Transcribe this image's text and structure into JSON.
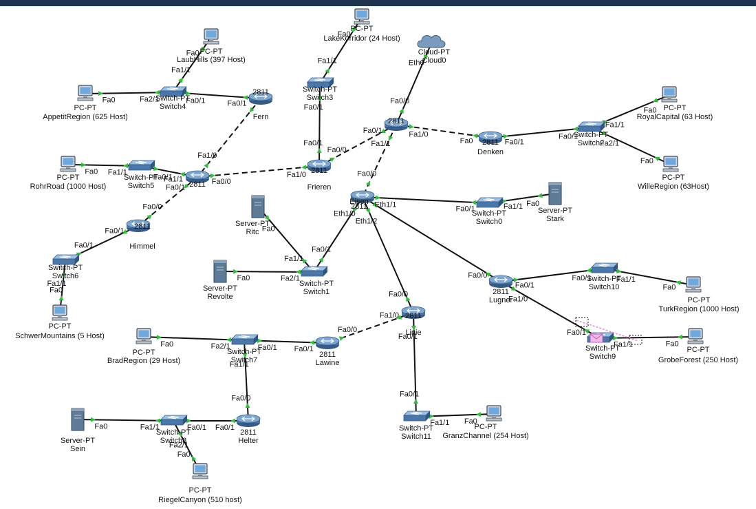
{
  "colors": {
    "top_bar": "#1f3350",
    "link": "#111111",
    "port_ok": "#2fbf3a",
    "pdu": "#e58ad6"
  },
  "devices": [
    {
      "id": "laubhills",
      "type": "pc",
      "name": "PC-PT",
      "label": "LaubHills (397 Host)"
    },
    {
      "id": "appetit",
      "type": "pc",
      "name": "PC-PT",
      "label": "AppetitRegion (625 Host)"
    },
    {
      "id": "switch4",
      "type": "switch",
      "name": "Switch-PT",
      "label": "Switch4"
    },
    {
      "id": "fern",
      "type": "router",
      "name": "2811",
      "label": "Fern"
    },
    {
      "id": "lakekorridor",
      "type": "pc",
      "name": "PC-PT",
      "label": "LakeKorridor (24 Host)"
    },
    {
      "id": "switch3",
      "type": "switch",
      "name": "Switch-PT",
      "label": "Switch3"
    },
    {
      "id": "cloud0",
      "type": "cloud",
      "name": "Cloud-PT",
      "label": "Cloud0"
    },
    {
      "id": "r1",
      "type": "router",
      "name": "2811",
      "label": ""
    },
    {
      "id": "denken",
      "type": "router",
      "name": "2811",
      "label": "Denken"
    },
    {
      "id": "switch2",
      "type": "switch",
      "name": "Switch-PT",
      "label": "Switch2"
    },
    {
      "id": "royalcapital",
      "type": "pc",
      "name": "PC-PT",
      "label": "RoyalCapital (63 Host)"
    },
    {
      "id": "willeregion",
      "type": "pc",
      "name": "PC-PT",
      "label": "WilleRegion (63Host)"
    },
    {
      "id": "rohrroad",
      "type": "pc",
      "name": "PC-PT",
      "label": "RohrRoad (1000 Host)"
    },
    {
      "id": "switch5",
      "type": "switch",
      "name": "Switch-PT",
      "label": "Switch5"
    },
    {
      "id": "r2",
      "type": "router",
      "name": "2811",
      "label": ""
    },
    {
      "id": "frieren",
      "type": "router",
      "name": "2811",
      "label": "Frieren"
    },
    {
      "id": "eisen",
      "type": "router",
      "name": "2811",
      "label": "Eisen"
    },
    {
      "id": "switch0",
      "type": "switch",
      "name": "Switch-PT",
      "label": "Switch0"
    },
    {
      "id": "stark",
      "type": "server",
      "name": "Server-PT",
      "label": "Stark"
    },
    {
      "id": "ritc",
      "type": "server",
      "name": "Server-PT",
      "label": "Ritc"
    },
    {
      "id": "himmel",
      "type": "router",
      "name": "2811",
      "label": "Himmel"
    },
    {
      "id": "switch6",
      "type": "switch",
      "name": "Switch-PT",
      "label": "Switch6"
    },
    {
      "id": "schwer",
      "type": "pc",
      "name": "PC-PT",
      "label": "SchwerMountains (5 Host)"
    },
    {
      "id": "revolte",
      "type": "server",
      "name": "Server-PT",
      "label": "Revolte"
    },
    {
      "id": "switch1",
      "type": "switch",
      "name": "Switch-PT",
      "label": "Switch1"
    },
    {
      "id": "lugner",
      "type": "router",
      "name": "2811",
      "label": "Lugner"
    },
    {
      "id": "switch10",
      "type": "switch",
      "name": "Switch-PT",
      "label": "Switch10"
    },
    {
      "id": "turkregion",
      "type": "pc",
      "name": "PC-PT",
      "label": "TurkRegion (1000 Host)"
    },
    {
      "id": "switch9",
      "type": "switch",
      "name": "Switch-PT",
      "label": "Switch9"
    },
    {
      "id": "grobeforest",
      "type": "pc",
      "name": "PC-PT",
      "label": "GrobeForest (250 Host)"
    },
    {
      "id": "linie",
      "type": "router",
      "name": "2811",
      "label": "Linie"
    },
    {
      "id": "bradregion",
      "type": "pc",
      "name": "PC-PT",
      "label": "BradRegion (29 Host)"
    },
    {
      "id": "switch7",
      "type": "switch",
      "name": "Switch-PT",
      "label": "Switch7"
    },
    {
      "id": "lawine",
      "type": "router",
      "name": "2811",
      "label": "Lawine"
    },
    {
      "id": "switch11",
      "type": "switch",
      "name": "Switch-PT",
      "label": "Switch11"
    },
    {
      "id": "granzchannel",
      "type": "pc",
      "name": "PC-PT",
      "label": "GranzChannel (254 Host)"
    },
    {
      "id": "sein",
      "type": "server",
      "name": "Server-PT",
      "label": "Sein"
    },
    {
      "id": "switch8",
      "type": "switch",
      "name": "Switch-PT",
      "label": "Switch8"
    },
    {
      "id": "helter",
      "type": "router",
      "name": "2811",
      "label": "Helter"
    },
    {
      "id": "riegel",
      "type": "pc",
      "name": "PC-PT",
      "label": "RiegelCanyon (510 host)"
    }
  ],
  "links": [
    {
      "from": "laubhills",
      "to": "switch4",
      "style": "solid",
      "a": "Fa0",
      "b": "Fa1/1"
    },
    {
      "from": "appetit",
      "to": "switch4",
      "style": "solid",
      "a": "Fa0",
      "b": "Fa2/1"
    },
    {
      "from": "switch4",
      "to": "fern",
      "style": "solid",
      "a": "Fa0/1",
      "b": "Fa0/1"
    },
    {
      "from": "fern",
      "to": "r2",
      "style": "dashed",
      "a": "",
      "b": "Fa1/0"
    },
    {
      "from": "lakekorridor",
      "to": "switch3",
      "style": "solid",
      "a": "Fa0",
      "b": "Fa1/1"
    },
    {
      "from": "switch3",
      "to": "frieren",
      "style": "solid",
      "a": "Fa0/1",
      "b": "Fa0/1"
    },
    {
      "from": "cloud0",
      "to": "r1",
      "style": "solid",
      "a": "Eth6",
      "b": "Fa0/0"
    },
    {
      "from": "r1",
      "to": "denken",
      "style": "dashed",
      "a": "Fa1/0",
      "b": "Fa0"
    },
    {
      "from": "r1",
      "to": "frieren",
      "style": "dashed",
      "a": "Fa0/1",
      "b": "Fa0/0"
    },
    {
      "from": "r1",
      "to": "eisen",
      "style": "dashed",
      "a": "Fa1/1",
      "b": "Fa0/0"
    },
    {
      "from": "denken",
      "to": "switch2",
      "style": "solid",
      "a": "Fa0/1",
      "b": "Fa0/1"
    },
    {
      "from": "switch2",
      "to": "royalcapital",
      "style": "solid",
      "a": "Fa1/1",
      "b": "Fa0"
    },
    {
      "from": "switch2",
      "to": "willeregion",
      "style": "solid",
      "a": "Fa2/1",
      "b": "Fa0"
    },
    {
      "from": "rohrroad",
      "to": "switch5",
      "style": "solid",
      "a": "Fa0",
      "b": "Fa1/1"
    },
    {
      "from": "switch5",
      "to": "r2",
      "style": "solid",
      "a": "Fa0/1",
      "b": "Fa1/1"
    },
    {
      "from": "r2",
      "to": "frieren",
      "style": "dashed",
      "a": "Fa0/0",
      "b": "Fa1/0"
    },
    {
      "from": "r2",
      "to": "himmel",
      "style": "dashed",
      "a": "Fa0/1",
      "b": "Fa0/0"
    },
    {
      "from": "eisen",
      "to": "switch0",
      "style": "solid",
      "a": "Eth1/1",
      "b": "Fa0/1"
    },
    {
      "from": "switch0",
      "to": "stark",
      "style": "solid",
      "a": "Fa1/1",
      "b": "Fa0"
    },
    {
      "from": "eisen",
      "to": "switch1",
      "style": "solid",
      "a": "Eth1/0",
      "b": "Fa0/1"
    },
    {
      "from": "eisen",
      "to": "linie",
      "style": "solid",
      "a": "Eth1/2",
      "b": "Fa0/0"
    },
    {
      "from": "eisen",
      "to": "lugner",
      "style": "solid",
      "a": "",
      "b": "Fa0/0"
    },
    {
      "from": "ritc",
      "to": "switch1",
      "style": "solid",
      "a": "Fa0",
      "b": "Fa1/1"
    },
    {
      "from": "revolte",
      "to": "switch1",
      "style": "solid",
      "a": "Fa0",
      "b": "Fa2/1"
    },
    {
      "from": "himmel",
      "to": "switch6",
      "style": "solid",
      "a": "Fa0/1",
      "b": "Fa0/1"
    },
    {
      "from": "switch6",
      "to": "schwer",
      "style": "solid",
      "a": "Fa1/1",
      "b": "Fa0"
    },
    {
      "from": "lugner",
      "to": "switch10",
      "style": "solid",
      "a": "Fa0/1",
      "b": "Fa0/1"
    },
    {
      "from": "switch10",
      "to": "turkregion",
      "style": "solid",
      "a": "Fa1/1",
      "b": "Fa0"
    },
    {
      "from": "lugner",
      "to": "switch9",
      "style": "solid",
      "a": "Fa1/0",
      "b": "Fa0/1"
    },
    {
      "from": "switch9",
      "to": "grobeforest",
      "style": "solid",
      "a": "Fa1/1",
      "b": "Fa0"
    },
    {
      "from": "linie",
      "to": "lawine",
      "style": "dashed",
      "a": "Fa1/0",
      "b": "Fa0/0"
    },
    {
      "from": "linie",
      "to": "switch11",
      "style": "solid",
      "a": "Fa0/1",
      "b": "Fa0/1"
    },
    {
      "from": "switch11",
      "to": "granzchannel",
      "style": "solid",
      "a": "Fa1/1",
      "b": "Fa0"
    },
    {
      "from": "bradregion",
      "to": "switch7",
      "style": "solid",
      "a": "Fa0",
      "b": "Fa2/1"
    },
    {
      "from": "switch7",
      "to": "lawine",
      "style": "solid",
      "a": "Fa0/1",
      "b": "Fa0/1"
    },
    {
      "from": "switch7",
      "to": "helter",
      "style": "solid",
      "a": "Fa1/1",
      "b": "Fa0/0"
    },
    {
      "from": "sein",
      "to": "switch8",
      "style": "solid",
      "a": "Fa0",
      "b": "Fa1/1"
    },
    {
      "from": "switch8",
      "to": "helter",
      "style": "solid",
      "a": "Fa0/1",
      "b": "Fa0/1"
    },
    {
      "from": "switch8",
      "to": "riegel",
      "style": "solid",
      "a": "Fa2/1",
      "b": "Fa0"
    }
  ]
}
